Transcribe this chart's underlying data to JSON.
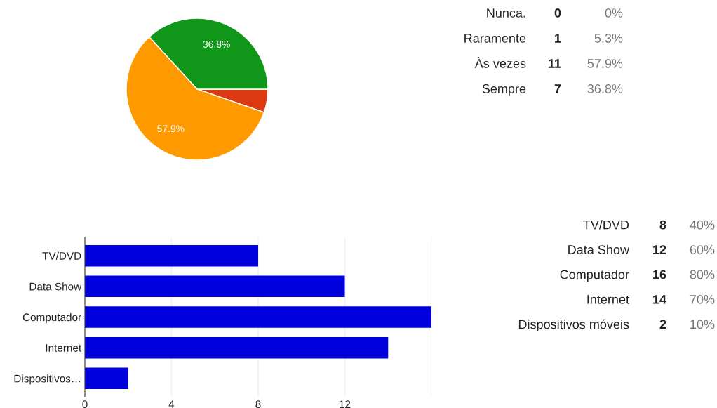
{
  "chart_data": [
    {
      "type": "pie",
      "categories": [
        null,
        null,
        null,
        null
      ],
      "values": [
        0,
        5.3,
        57.9,
        36.8
      ],
      "colors": [
        "#3366cc",
        "#dc3912",
        "#ff9900",
        "#109618"
      ],
      "value_labels": [
        null,
        null,
        "57.9%",
        "36.8%"
      ]
    },
    {
      "type": "other",
      "categories": [
        "Nunca.",
        "Raramente",
        "Às vezes",
        "Sempre"
      ],
      "series": [
        {
          "values": [
            0,
            1,
            11,
            7
          ]
        },
        {
          "values": [
            0,
            5.3,
            57.9,
            36.8
          ],
          "value_labels": [
            "0%",
            "5.3%",
            "57.9%",
            "36.8%"
          ]
        }
      ],
      "data_labels": true
    },
    {
      "type": "bar",
      "orientation": "horizontal",
      "categories": [
        "TV/DVD",
        "Data Show",
        "Computador",
        "Internet",
        "Dispositivos…"
      ],
      "values": [
        8,
        12,
        16,
        14,
        2
      ],
      "color": "#0000dc",
      "xlim": [
        0,
        16
      ],
      "xticks": [
        0,
        4,
        8,
        12,
        {
          "value": 16,
          "label": null
        }
      ],
      "grid": "x"
    },
    {
      "type": "other",
      "categories": [
        "TV/DVD",
        "Data Show",
        "Computador",
        "Internet",
        "Dispositivos móveis"
      ],
      "series": [
        {
          "values": [
            8,
            12,
            16,
            14,
            2
          ]
        },
        {
          "values": [
            40,
            60,
            80,
            70,
            10
          ],
          "value_labels": [
            "40%",
            "60%",
            "80%",
            "70%",
            "10%"
          ]
        }
      ],
      "data_labels": true
    }
  ]
}
